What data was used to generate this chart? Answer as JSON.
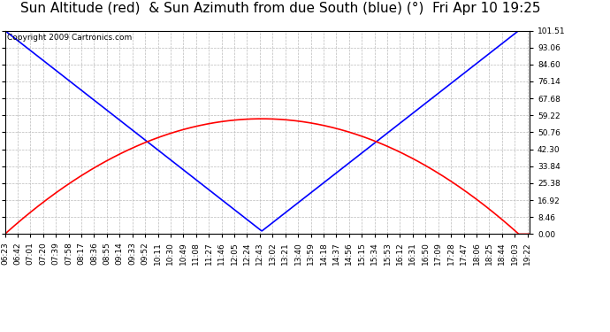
{
  "title": "Sun Altitude (red)  & Sun Azimuth from due South (blue) (°)  Fri Apr 10 19:25",
  "copyright": "Copyright 2009 Cartronics.com",
  "yticks": [
    0.0,
    8.46,
    16.92,
    25.38,
    33.84,
    42.3,
    50.76,
    59.22,
    67.68,
    76.14,
    84.6,
    93.06,
    101.51
  ],
  "ymax": 101.51,
  "ymin": 0.0,
  "sunrise_hour": 6,
  "sunrise_min": 23,
  "sunset_hour": 19,
  "sunset_min": 25,
  "solar_noon_hour": 12,
  "solar_noon_min": 46,
  "max_altitude": 57.5,
  "azimuth_min_val": 1.5,
  "altitude_color": "#ff0000",
  "azimuth_color": "#0000ff",
  "bg_color": "#ffffff",
  "plot_bg_color": "#ffffff",
  "grid_color": "#bbbbbb",
  "title_fontsize": 11,
  "tick_fontsize": 6.5,
  "copyright_fontsize": 6.5,
  "tick_interval_min": 19,
  "line_width": 1.2
}
